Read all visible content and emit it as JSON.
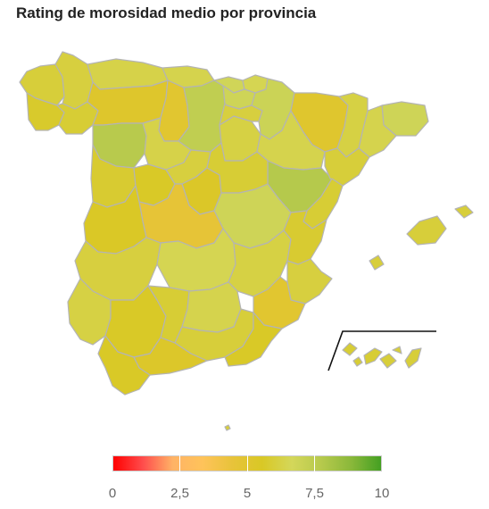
{
  "title": "Rating de morosidad medio por provincia",
  "legend": {
    "min": 0,
    "max": 10,
    "ticks": [
      "0",
      "2,5",
      "5",
      "7,5",
      "10"
    ],
    "tick_values": [
      0,
      2.5,
      5,
      7.5,
      10
    ],
    "colors": [
      "#ff0000",
      "#ff4d4d",
      "#ffb366",
      "#ffc35a",
      "#e8c33a",
      "#d9c825",
      "#d4d75a",
      "#b6c94c",
      "#8ab83a",
      "#44a022"
    ]
  },
  "chart_data": {
    "type": "choropleth",
    "title": "Rating de morosidad medio por provincia",
    "scale": [
      0,
      10
    ],
    "regions": [
      {
        "name": "A Coruña",
        "value": 6.0
      },
      {
        "name": "Lugo",
        "value": 6.1
      },
      {
        "name": "Asturias",
        "value": 6.3
      },
      {
        "name": "Cantabria",
        "value": 6.4
      },
      {
        "name": "Pontevedra",
        "value": 5.7
      },
      {
        "name": "Ourense",
        "value": 5.9
      },
      {
        "name": "León",
        "value": 5.2
      },
      {
        "name": "Palencia",
        "value": 5.0
      },
      {
        "name": "Burgos",
        "value": 7.4
      },
      {
        "name": "Zamora",
        "value": 7.7
      },
      {
        "name": "Valladolid",
        "value": 6.3
      },
      {
        "name": "Soria",
        "value": 6.2
      },
      {
        "name": "Vizcaya",
        "value": 6.8
      },
      {
        "name": "Guipúzcoa",
        "value": 6.5
      },
      {
        "name": "Álava",
        "value": 6.9
      },
      {
        "name": "La Rioja",
        "value": 6.1
      },
      {
        "name": "Navarra",
        "value": 7.0
      },
      {
        "name": "Huesca",
        "value": 5.1
      },
      {
        "name": "Zaragoza",
        "value": 6.4
      },
      {
        "name": "Teruel",
        "value": 7.8
      },
      {
        "name": "Girona",
        "value": 6.9
      },
      {
        "name": "Barcelona",
        "value": 6.4
      },
      {
        "name": "Lleida",
        "value": 6.2
      },
      {
        "name": "Tarragona",
        "value": 6.0
      },
      {
        "name": "Salamanca",
        "value": 5.8
      },
      {
        "name": "Ávila",
        "value": 5.6
      },
      {
        "name": "Segovia",
        "value": 6.1
      },
      {
        "name": "Madrid",
        "value": 5.4
      },
      {
        "name": "Guadalajara",
        "value": 5.9
      },
      {
        "name": "Cuenca",
        "value": 6.9
      },
      {
        "name": "Toledo",
        "value": 4.6
      },
      {
        "name": "Cáceres",
        "value": 5.5
      },
      {
        "name": "Badajoz",
        "value": 6.1
      },
      {
        "name": "Ciudad Real",
        "value": 6.5
      },
      {
        "name": "Albacete",
        "value": 6.2
      },
      {
        "name": "Castellón",
        "value": 5.9
      },
      {
        "name": "Valencia",
        "value": 5.8
      },
      {
        "name": "Alicante",
        "value": 6.1
      },
      {
        "name": "Murcia",
        "value": 5.0
      },
      {
        "name": "Huelva",
        "value": 6.2
      },
      {
        "name": "Sevilla",
        "value": 5.6
      },
      {
        "name": "Córdoba",
        "value": 5.9
      },
      {
        "name": "Jaén",
        "value": 6.4
      },
      {
        "name": "Granada",
        "value": 6.0
      },
      {
        "name": "Almería",
        "value": 5.6
      },
      {
        "name": "Málaga",
        "value": 5.3
      },
      {
        "name": "Cádiz",
        "value": 5.6
      },
      {
        "name": "Baleares",
        "value": 6.0
      },
      {
        "name": "Las Palmas",
        "value": 6.0
      },
      {
        "name": "Santa Cruz de Tenerife",
        "value": 5.9
      },
      {
        "name": "Ceuta",
        "value": 6.0
      }
    ]
  }
}
